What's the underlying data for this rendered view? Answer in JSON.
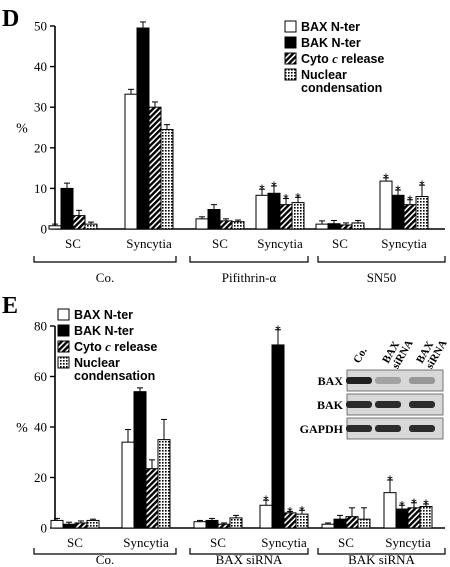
{
  "colors": {
    "axis": "#000000",
    "bar_outline": "#000000",
    "bar_fill_white": "#ffffff",
    "bar_fill_black": "#000000",
    "blot_bg": "#d8d8d8"
  },
  "chart_data": [
    {
      "panel": "D",
      "type": "bar",
      "ylabel": "%",
      "ylim": [
        0,
        50
      ],
      "yticks": [
        0,
        10,
        20,
        30,
        40,
        50
      ],
      "categories": [
        "SC",
        "Syncytia",
        "SC",
        "Syncytia",
        "SC",
        "Syncytia"
      ],
      "groups": [
        {
          "label": "Co.",
          "categories": [
            0,
            1
          ]
        },
        {
          "label": "Pifithrin-α",
          "categories": [
            2,
            3
          ]
        },
        {
          "label": "SN50",
          "categories": [
            4,
            5
          ]
        }
      ],
      "legend_placement": "top-right",
      "series": [
        {
          "name": "BAX N-ter",
          "pattern": "white",
          "values": [
            0.8,
            33.2,
            2.5,
            8.3,
            1.2,
            11.8
          ],
          "errors": [
            0.4,
            1.2,
            0.5,
            1.5,
            0.8,
            0.8
          ],
          "significant": [
            false,
            false,
            false,
            true,
            false,
            true
          ]
        },
        {
          "name": "BAK N-ter",
          "pattern": "black",
          "values": [
            10.0,
            49.5,
            4.8,
            8.8,
            1.3,
            8.3
          ],
          "errors": [
            1.3,
            1.5,
            1.2,
            1.8,
            0.8,
            1.3
          ],
          "significant": [
            false,
            false,
            false,
            true,
            false,
            true
          ]
        },
        {
          "name": "Cyto c release",
          "name_parts": [
            "Cyto ",
            "c",
            " release"
          ],
          "pattern": "hatch",
          "values": [
            3.3,
            30.0,
            2.0,
            6.0,
            1.0,
            6.0
          ],
          "errors": [
            1.3,
            1.3,
            0.5,
            1.5,
            0.5,
            1.2
          ],
          "significant": [
            false,
            false,
            false,
            true,
            false,
            true
          ]
        },
        {
          "name": "Nuclear condensation",
          "name_lines": [
            "Nuclear",
            "condensation"
          ],
          "pattern": "dots",
          "values": [
            1.2,
            24.5,
            1.8,
            6.5,
            1.5,
            8.0
          ],
          "errors": [
            0.5,
            1.2,
            0.4,
            1.3,
            0.6,
            2.8
          ],
          "significant": [
            false,
            false,
            false,
            true,
            false,
            true
          ]
        }
      ]
    },
    {
      "panel": "E",
      "type": "bar",
      "ylabel": "%",
      "ylim": [
        0,
        80
      ],
      "yticks": [
        0,
        20,
        40,
        60,
        80
      ],
      "categories": [
        "SC",
        "Syncytia",
        "SC",
        "Syncytia",
        "SC",
        "Syncytia"
      ],
      "groups": [
        {
          "label": "Co.",
          "categories": [
            0,
            1
          ]
        },
        {
          "label": "BAX siRNA",
          "categories": [
            2,
            3
          ]
        },
        {
          "label": "BAK siRNA",
          "categories": [
            4,
            5
          ]
        }
      ],
      "legend_placement": "top-left",
      "series": [
        {
          "name": "BAX N-ter",
          "pattern": "white",
          "values": [
            3.0,
            34.0,
            2.5,
            9.0,
            1.5,
            14.0
          ],
          "errors": [
            0.8,
            5.0,
            0.5,
            2.0,
            0.5,
            5.0
          ],
          "significant": [
            false,
            false,
            false,
            true,
            false,
            true
          ]
        },
        {
          "name": "BAK N-ter",
          "pattern": "black",
          "values": [
            1.5,
            54.0,
            3.0,
            72.5,
            3.5,
            7.5
          ],
          "errors": [
            0.8,
            1.5,
            0.8,
            6.0,
            1.5,
            1.5
          ],
          "significant": [
            false,
            false,
            false,
            true,
            false,
            true
          ]
        },
        {
          "name": "Cyto c release",
          "name_parts": [
            "Cyto ",
            "c",
            " release"
          ],
          "pattern": "hatch",
          "values": [
            2.0,
            23.5,
            1.5,
            6.0,
            4.5,
            8.0
          ],
          "errors": [
            0.8,
            3.5,
            0.5,
            0.5,
            3.5,
            2.0
          ],
          "significant": [
            false,
            false,
            false,
            true,
            false,
            true
          ]
        },
        {
          "name": "Nuclear condensation",
          "name_lines": [
            "Nuclear",
            "condensation"
          ],
          "pattern": "dots",
          "values": [
            3.0,
            35.0,
            4.0,
            5.5,
            3.5,
            8.5
          ],
          "errors": [
            0.5,
            8.0,
            1.0,
            1.5,
            4.5,
            1.0
          ],
          "significant": [
            false,
            false,
            false,
            true,
            false,
            true
          ]
        }
      ],
      "inset_blot": {
        "columns": [
          "Co.",
          "BAX siRNA",
          "BAX siRNA"
        ],
        "column_lines": [
          [
            "Co."
          ],
          [
            "BAX",
            "siRNA"
          ],
          [
            "BAX",
            "siRNA"
          ]
        ],
        "rows": [
          "BAX",
          "BAK",
          "GAPDH"
        ]
      }
    }
  ]
}
